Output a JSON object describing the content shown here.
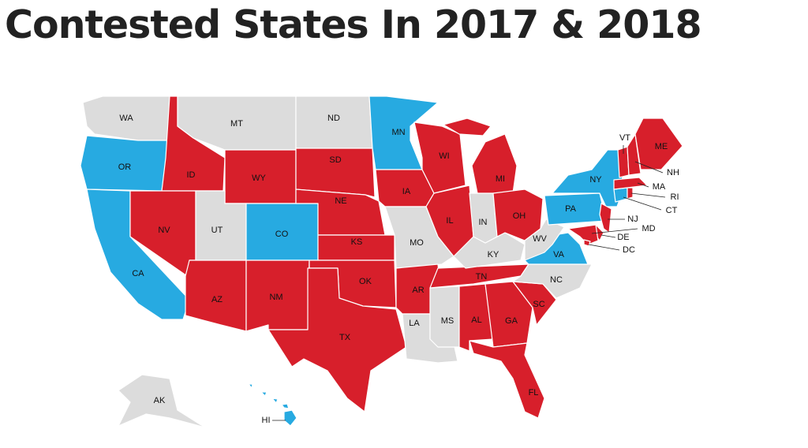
{
  "title": "Contested States In 2017 & 2018",
  "states": [
    {
      "label": "WA",
      "color": "#dcdcdc"
    },
    {
      "label": "OR",
      "color": "#27aae1"
    },
    {
      "label": "CA",
      "color": "#27aae1"
    },
    {
      "label": "ID",
      "color": "#d71f2b"
    },
    {
      "label": "NV",
      "color": "#d71f2b"
    },
    {
      "label": "MT",
      "color": "#dcdcdc"
    },
    {
      "label": "WY",
      "color": "#d71f2b"
    },
    {
      "label": "UT",
      "color": "#dcdcdc"
    },
    {
      "label": "CO",
      "color": "#27aae1"
    },
    {
      "label": "AZ",
      "color": "#d71f2b"
    },
    {
      "label": "NM",
      "color": "#d71f2b"
    },
    {
      "label": "ND",
      "color": "#dcdcdc"
    },
    {
      "label": "SD",
      "color": "#d71f2b"
    },
    {
      "label": "NE",
      "color": "#d71f2b"
    },
    {
      "label": "KS",
      "color": "#d71f2b"
    },
    {
      "label": "OK",
      "color": "#d71f2b"
    },
    {
      "label": "TX",
      "color": "#d71f2b"
    },
    {
      "label": "MN",
      "color": "#27aae1"
    },
    {
      "label": "IA",
      "color": "#d71f2b"
    },
    {
      "label": "MO",
      "color": "#dcdcdc"
    },
    {
      "label": "AR",
      "color": "#d71f2b"
    },
    {
      "label": "LA",
      "color": "#dcdcdc"
    },
    {
      "label": "WI",
      "color": "#d71f2b"
    },
    {
      "label": "IL",
      "color": "#d71f2b"
    },
    {
      "label": "MS",
      "color": "#dcdcdc"
    },
    {
      "label": "AL",
      "color": "#d71f2b"
    },
    {
      "label": "TN",
      "color": "#d71f2b"
    },
    {
      "label": "KY",
      "color": "#dcdcdc"
    },
    {
      "label": "IN",
      "color": "#dcdcdc"
    },
    {
      "label": "MI",
      "color": "#d71f2b"
    },
    {
      "label": "OH",
      "color": "#d71f2b"
    },
    {
      "label": "GA",
      "color": "#d71f2b"
    },
    {
      "label": "FL",
      "color": "#d71f2b"
    },
    {
      "label": "SC",
      "color": "#d71f2b"
    },
    {
      "label": "NC",
      "color": "#dcdcdc"
    },
    {
      "label": "VA",
      "color": "#27aae1"
    },
    {
      "label": "WV",
      "color": "#dcdcdc"
    },
    {
      "label": "PA",
      "color": "#27aae1"
    },
    {
      "label": "NY",
      "color": "#27aae1"
    },
    {
      "label": "NJ",
      "color": "#d71f2b"
    },
    {
      "label": "DE",
      "color": "#d71f2b"
    },
    {
      "label": "MD",
      "color": "#d71f2b"
    },
    {
      "label": "DC",
      "color": "#d71f2b"
    },
    {
      "label": "CT",
      "color": "#27aae1"
    },
    {
      "label": "RI",
      "color": "#d71f2b"
    },
    {
      "label": "MA",
      "color": "#d71f2b"
    },
    {
      "label": "VT",
      "color": "#d71f2b"
    },
    {
      "label": "NH",
      "color": "#d71f2b"
    },
    {
      "label": "ME",
      "color": "#d71f2b"
    },
    {
      "label": "AK",
      "color": "#dcdcdc"
    },
    {
      "label": "HI",
      "color": "#27aae1"
    }
  ]
}
